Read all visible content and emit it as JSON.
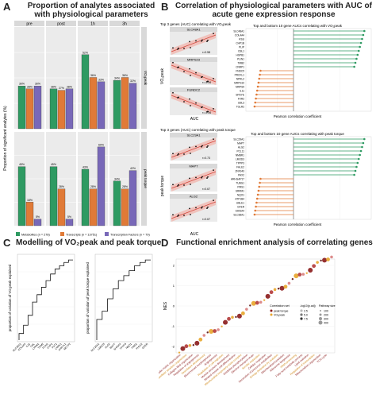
{
  "panelA": {
    "letter": "A",
    "title": "Proportion of analytes associated\nwith physiological parameters",
    "facets": [
      "pre",
      "post",
      "1h",
      "3h"
    ],
    "row_strips": [
      "VO₂peak",
      "peak torque"
    ],
    "y_axis_label": "Proportion of significant analytes (%)",
    "legend": [
      {
        "label": "Metabolites (n = 278)",
        "color": "#2e9a62"
      },
      {
        "label": "Transcripts (n = 13751)",
        "color": "#e07a37"
      },
      {
        "label": "Transcription Factors (n = 79)",
        "color": "#7868b8"
      }
    ]
  },
  "panelB": {
    "letter": "B",
    "title": "Correlation of physiological parameters with AUC of\nacute gene expression response",
    "top_title": "Top and bottom 10 gene AUCs correlating with VO₂peak",
    "bottom_title": "Top and bottom 10 gene AUCs correlating with peak torque",
    "scatter_title_top": "Top 3 genes (AUC) correlating with VO₂peak",
    "scatter_title_bottom": "Top 3 genes (AUC) correlating with peak torque",
    "xlabel": "Pearson correlation coefficient",
    "auc_label": "AUC",
    "ylabel_top": "VO₂peak",
    "ylabel_bottom": "peak torque",
    "top_genes_pos": [
      "SLC48A1",
      "COL4A4",
      "RSU",
      "CHP1B",
      "PLIP",
      "CBL1",
      "HSPB1",
      "PLIN1",
      "TMB2",
      "CNRP1"
    ],
    "top_genes_neg": [
      "FNDC5",
      "PRCKL1",
      "NPRL2",
      "MRPS10",
      "MRPS9",
      "IL11",
      "SPDYE",
      "FXR2",
      "UBL3",
      "TGLR2"
    ],
    "bottom_genes_pos": [
      "SLC29A1",
      "MAPT",
      "ALG2",
      "PCL11",
      "NMBR1",
      "LMOD3",
      "TPPP3",
      "FHLE2",
      "ZNF343",
      "PAX2"
    ],
    "bottom_genes_neg": [
      "ARHGAP17",
      "TUBG1",
      "PMS1",
      "SRRM1",
      "NQO1",
      "ATP1B4",
      "UBLE1",
      "GFER",
      "SHISA4",
      "SLC38A1"
    ],
    "mini_labels": [
      "SLC48A1",
      "MRPS23",
      "FUNDC2",
      "SLC29A1",
      "MAPT",
      "ALG2"
    ],
    "mini_r": [
      "r=0.58",
      "r=-0.56",
      "r=-0.56",
      "r=0.73",
      "r=0.67",
      "r=0.67"
    ]
  },
  "panelC": {
    "letter": "C",
    "title": "Modelling of VO₂peak and peak torque",
    "ylabel_left": "proportion of variation of VO₂peak explained",
    "ylabel_right": "proportion of variation of peak torque explained",
    "xlabels_left": [
      "SLC48A1",
      "COL4A4",
      "IL11",
      "CBL",
      "LYRM1",
      "TGM2",
      "PLIN1",
      "CHP1",
      "FUT1",
      "LRRK1",
      "AHCYL1",
      "MCTP2"
    ],
    "xlabels_right": [
      "SLC29A1",
      "LMOD3",
      "ALG2",
      "MAPT",
      "SHISA4",
      "TPPP3",
      "NQO1",
      "PMS1",
      "FHLE2",
      "GFER"
    ]
  },
  "panelD": {
    "letter": "D",
    "title": "Functional enrichment analysis of correlating genes",
    "ylabel": "NES",
    "legend_corr_title": "Correlation set",
    "legend_corr": [
      {
        "label": "peak torque",
        "color": "#8a1a1a"
      },
      {
        "label": "VO₂peak",
        "color": "#e8a52a"
      }
    ],
    "legend_p_title": "-log10(p.adj)",
    "legend_p": [
      "2.5",
      "5.0",
      "7.5"
    ],
    "legend_size_title": "Pathway size",
    "legend_size": [
      "100",
      "200",
      "300",
      "400"
    ],
    "terms": [
      "Extracellular matrix organization",
      "Extracellular structure organization",
      "Collagen fibril organization",
      "Regulation of angiogenesis",
      "Vasculature development",
      "Blood vessel morphogenesis",
      "Angiogenesis",
      "Regulation of cell migration",
      "Muscle structure development",
      "Striated muscle cell differentiation",
      "Mitochondrial respiratory chain complex",
      "Oxidative phosphorylation",
      "Electron transport chain",
      "Aerobic respiration",
      "Cellular respiration",
      "Generation of precursor metabolites",
      "Energy derivation by oxidation",
      "Mitochondrial translation",
      "Ribosome biogenesis",
      "rRNA processing",
      "Fatty acid metabolic process",
      "Lipid oxidation",
      "Regulation of transcription",
      "Mitochondrion organization",
      "TCA cycle"
    ]
  }
}
